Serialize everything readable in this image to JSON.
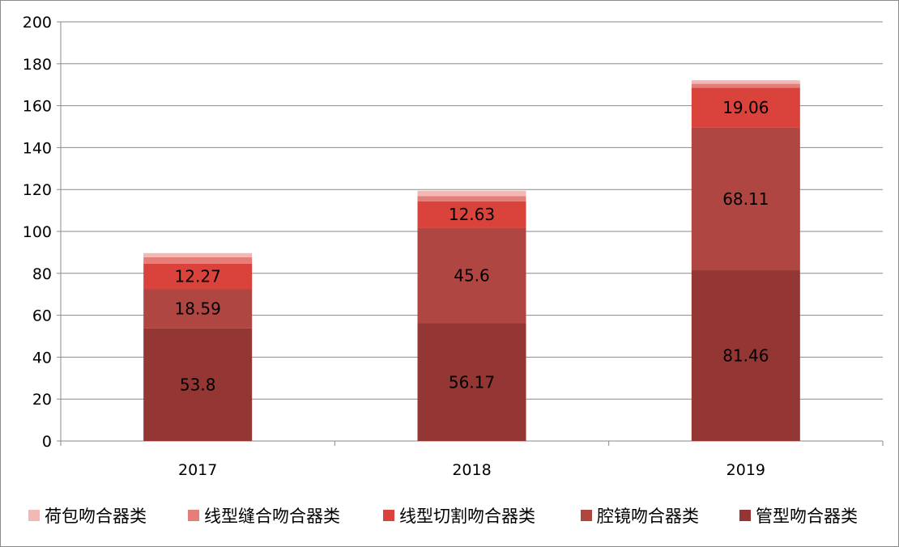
{
  "chart_data": {
    "type": "bar",
    "stacked": true,
    "categories": [
      "2017",
      "2018",
      "2019"
    ],
    "series": [
      {
        "name": "管型吻合器类",
        "values": [
          53.8,
          56.17,
          81.46
        ],
        "labels": [
          "53.8",
          "56.17",
          "81.46"
        ],
        "color": "#943634"
      },
      {
        "name": "腔镜吻合器类",
        "values": [
          18.59,
          45.6,
          68.11
        ],
        "labels": [
          "18.59",
          "45.6",
          "68.11"
        ],
        "color": "#b04642"
      },
      {
        "name": "线型切割吻合器类",
        "values": [
          12.27,
          12.63,
          19.06
        ],
        "labels": [
          "12.27",
          "12.63",
          "19.06"
        ],
        "color": "#d9433c"
      },
      {
        "name": "线型缝合吻合器类",
        "values": [
          3.0,
          2.5,
          1.8
        ],
        "labels": [
          "",
          "",
          ""
        ],
        "color": "#e57e78"
      },
      {
        "name": "荷包吻合器类",
        "values": [
          2.0,
          2.5,
          1.7
        ],
        "labels": [
          "",
          "",
          ""
        ],
        "color": "#f2b8b5"
      }
    ],
    "legend_order": [
      "荷包吻合器类",
      "线型缝合吻合器类",
      "线型切割吻合器类",
      "腔镜吻合器类",
      "管型吻合器类"
    ],
    "ylim": [
      0,
      200
    ],
    "yticks": [
      "0",
      "20",
      "40",
      "60",
      "80",
      "100",
      "120",
      "140",
      "160",
      "180",
      "200"
    ],
    "grid": true,
    "legend_position": "bottom",
    "title": "",
    "xlabel": "",
    "ylabel": ""
  }
}
